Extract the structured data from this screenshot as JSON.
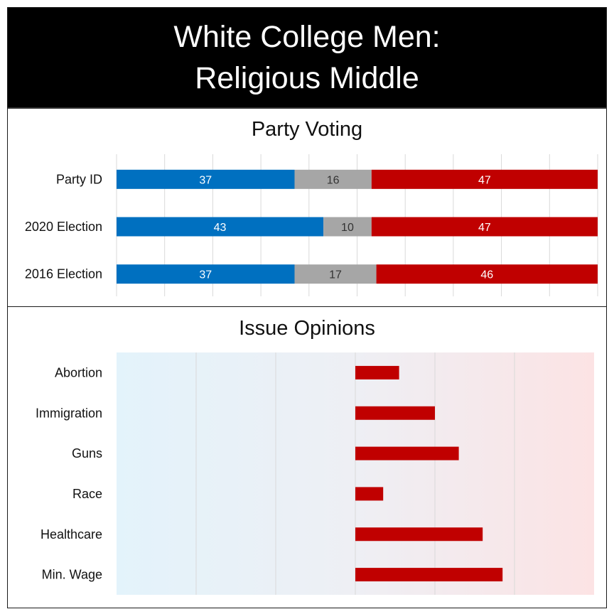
{
  "title": {
    "line1": "White College Men:",
    "line2": "Religious Middle"
  },
  "party_section_title": "Party Voting",
  "issues_section_title": "Issue Opinions",
  "colors": {
    "dem": "#0070c0",
    "other": "#a6a6a6",
    "rep": "#c00000",
    "grid": "#d9d9d9",
    "bg_left": "#e3f3fb",
    "bg_right": "#fce3e4"
  },
  "chart_data": [
    {
      "type": "bar",
      "orientation": "horizontal",
      "stacked": true,
      "title": "Party Voting",
      "categories": [
        "Party ID",
        "2020 Election",
        "2016 Election"
      ],
      "series": [
        {
          "values": [
            37,
            43,
            37
          ],
          "color": "#0070c0"
        },
        {
          "values": [
            16,
            10,
            17
          ],
          "color": "#a6a6a6"
        },
        {
          "values": [
            47,
            47,
            46
          ],
          "color": "#c00000"
        }
      ],
      "xlim": [
        0,
        100
      ],
      "grid": true
    },
    {
      "type": "bar",
      "orientation": "horizontal",
      "title": "Issue Opinions",
      "categories": [
        "Abortion",
        "Immigration",
        "Guns",
        "Race",
        "Healthcare",
        "Min. Wage"
      ],
      "values": [
        0.55,
        1.0,
        1.3,
        0.35,
        1.6,
        1.85
      ],
      "xlim": [
        -3,
        3
      ],
      "color": "#c00000",
      "background_gradient": "blue-to-red",
      "grid": true
    }
  ]
}
